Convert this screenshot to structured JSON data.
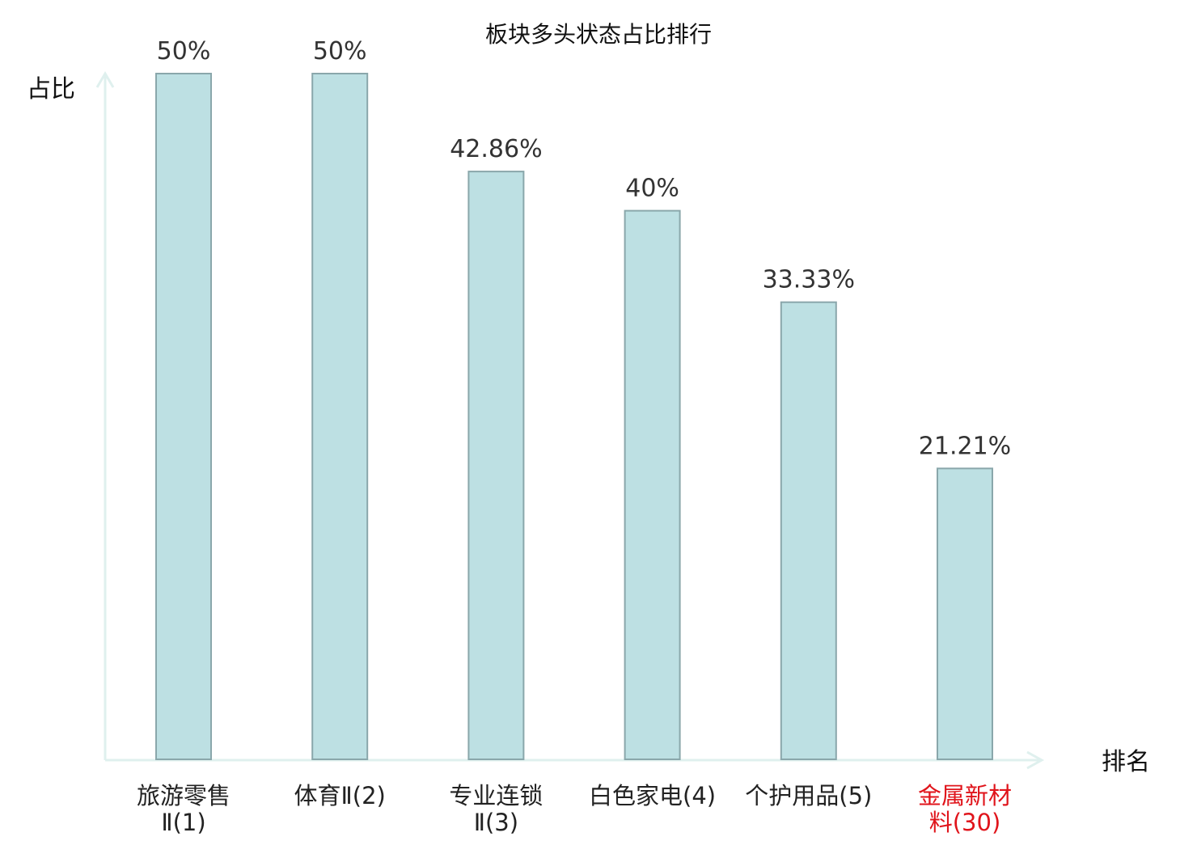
{
  "chart_data": {
    "type": "bar",
    "title": "板块多头状态占比排行",
    "ylabel": "占比",
    "xlabel": "排名",
    "ylim": [
      0,
      50
    ],
    "grid": false,
    "legend": "none",
    "categories": [
      {
        "lines": [
          "旅游零售",
          "Ⅱ(1)"
        ],
        "highlight": false
      },
      {
        "lines": [
          "体育Ⅱ(2)"
        ],
        "highlight": false
      },
      {
        "lines": [
          "专业连锁",
          "Ⅱ(3)"
        ],
        "highlight": false
      },
      {
        "lines": [
          "白色家电(4)"
        ],
        "highlight": false
      },
      {
        "lines": [
          "个护用品(5)"
        ],
        "highlight": false
      },
      {
        "lines": [
          "金属新材",
          "料(30)"
        ],
        "highlight": true
      }
    ],
    "values": [
      50,
      50,
      42.86,
      40,
      33.33,
      21.21
    ],
    "value_labels": [
      "50%",
      "50%",
      "42.86%",
      "40%",
      "33.33%",
      "21.21%"
    ],
    "colors": {
      "bar_fill": "#bde0e3",
      "bar_stroke": "#8aa7ab",
      "axis": "#dff0ee",
      "label": "#222222",
      "highlight_label": "#e0141b"
    }
  }
}
